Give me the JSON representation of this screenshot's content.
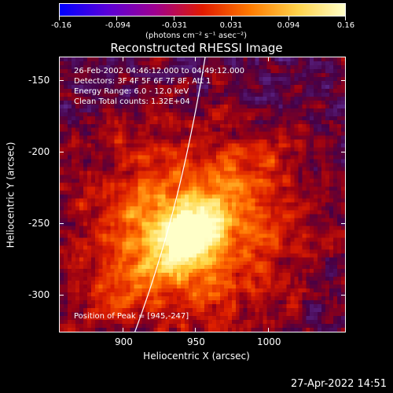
{
  "colorbar": {
    "tick_labels": [
      "-0.16",
      "-0.094",
      "-0.031",
      "0.031",
      "0.094",
      "0.16"
    ],
    "units": "(photons cm⁻² s⁻¹ asec⁻²)",
    "colors": [
      "#0000ff",
      "#5a00d9",
      "#9e0090",
      "#e01a00",
      "#ff7a00",
      "#ffd24a",
      "#ffffc8"
    ]
  },
  "title": "Reconstructed RHESSI Image",
  "info": {
    "line1": "26-Feb-2002 04:46:12.000 to 04:49:12.000",
    "line2": "Detectors: 3F 4F 5F 6F 7F 8F, Att 1",
    "line3": "Energy Range: 6.0 - 12.0 keV",
    "line4": "Clean     Total counts: 1.32E+04"
  },
  "peak": "Position of Peak = [945,-247]",
  "axes": {
    "ylabel": "Heliocentric  Y (arcsec)",
    "xlabel": "Heliocentric X (arcsec)",
    "y_ticks": [
      "-150",
      "-200",
      "-250",
      "-300"
    ],
    "x_ticks": [
      "900",
      "950",
      "1000"
    ]
  },
  "timestamp": "27-Apr-2022 14:51"
}
